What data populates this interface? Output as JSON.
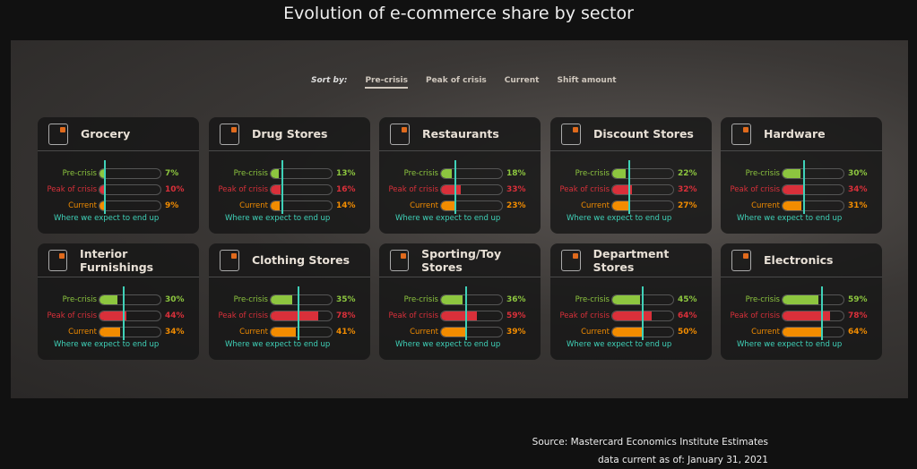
{
  "title": "Evolution of e-commerce share by sector",
  "sort": {
    "label": "Sort by:",
    "options": [
      "Pre-crisis",
      "Peak of crisis",
      "Current",
      "Shift amount"
    ],
    "active": "Pre-crisis"
  },
  "row_labels": [
    "Pre-crisis",
    "Peak of crisis",
    "Current"
  ],
  "colors": {
    "pre": "#8dc63f",
    "peak": "#d9303a",
    "current": "#f28c00",
    "expect": "#3fd1b8"
  },
  "expect_label": "Where we expect to end up",
  "sectors": [
    {
      "name": "Grocery",
      "icon": "grocery-bag-icon",
      "pre": 7,
      "peak": 10,
      "current": 9,
      "expect": 5
    },
    {
      "name": "Drug Stores",
      "icon": "prescription-icon",
      "pre": 13,
      "peak": 16,
      "current": 14,
      "expect": 15
    },
    {
      "name": "Restaurants",
      "icon": "restaurant-icon",
      "pre": 18,
      "peak": 33,
      "current": 23,
      "expect": 20
    },
    {
      "name": "Discount Stores",
      "icon": "price-tag-icon",
      "pre": 22,
      "peak": 32,
      "current": 27,
      "expect": 24
    },
    {
      "name": "Hardware",
      "icon": "tools-icon",
      "pre": 30,
      "peak": 34,
      "current": 31,
      "expect": 32
    },
    {
      "name": "Interior Furnishings",
      "icon": "sofa-icon",
      "pre": 30,
      "peak": 44,
      "current": 34,
      "expect": 35
    },
    {
      "name": "Clothing Stores",
      "icon": "dress-icon",
      "pre": 35,
      "peak": 78,
      "current": 41,
      "expect": 42
    },
    {
      "name": "Sporting/Toy Stores",
      "icon": "ball-icon",
      "pre": 36,
      "peak": 59,
      "current": 39,
      "expect": 37
    },
    {
      "name": "Department Stores",
      "icon": "department-store-icon",
      "pre": 45,
      "peak": 64,
      "current": 50,
      "expect": 46
    },
    {
      "name": "Electronics",
      "icon": "computer-icon",
      "pre": 59,
      "peak": 78,
      "current": 64,
      "expect": 60
    }
  ],
  "source": "Source: Mastercard Economics Institute Estimates",
  "date": "data current as of: January 31, 2021"
}
